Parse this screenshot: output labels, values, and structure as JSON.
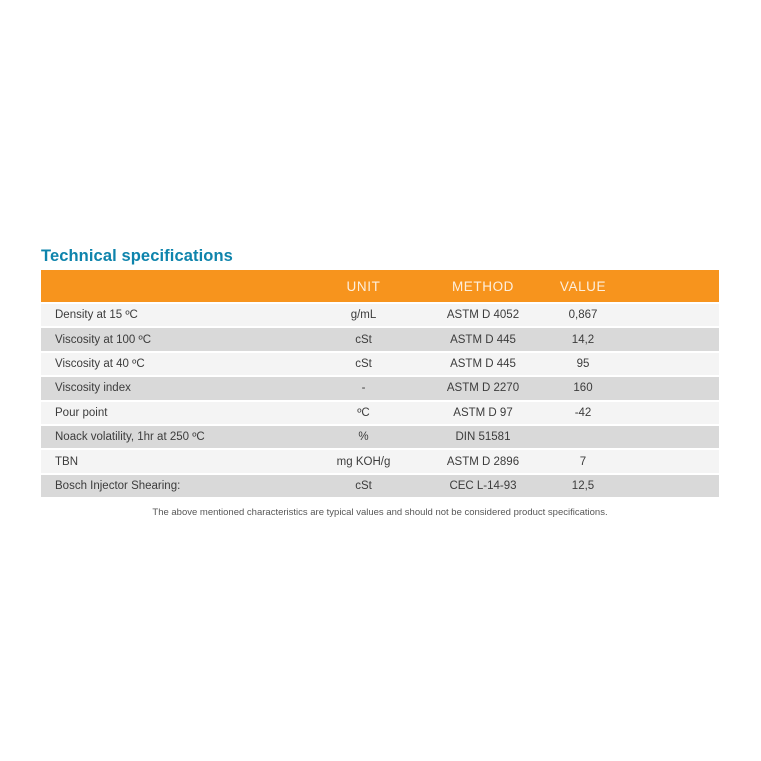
{
  "section": {
    "title": "Technical specifications",
    "footnote": "The above mentioned characteristics are typical values and should not be considered product specifications."
  },
  "table": {
    "columns": {
      "property": "",
      "unit": "UNIT",
      "method": "METHOD",
      "value": "VALUE"
    },
    "rows": [
      {
        "property": "Density at 15 ºC",
        "unit": "g/mL",
        "method": "ASTM D 4052",
        "value": "0,867"
      },
      {
        "property": "Viscosity at 100 ºC",
        "unit": "cSt",
        "method": "ASTM D 445",
        "value": "14,2"
      },
      {
        "property": "Viscosity at 40 ºC",
        "unit": "cSt",
        "method": "ASTM D 445",
        "value": "95"
      },
      {
        "property": "Viscosity index",
        "unit": "-",
        "method": "ASTM D 2270",
        "value": "160"
      },
      {
        "property": "Pour point",
        "unit": "ºC",
        "method": "ASTM D 97",
        "value": "-42"
      },
      {
        "property": "Noack volatility, 1hr at 250 ºC",
        "unit": "%",
        "method": "DIN 51581",
        "value": ""
      },
      {
        "property": "TBN",
        "unit": "mg KOH/g",
        "method": "ASTM D 2896",
        "value": "7"
      },
      {
        "property": "Bosch Injector Shearing:",
        "unit": "cSt",
        "method": "CEC L-14-93",
        "value": "12,5"
      }
    ]
  },
  "theme": {
    "header_bg": "#F7941D",
    "header_text": "#FFFFFF",
    "title_color": "#0E84AC",
    "row_light": "#F4F4F4",
    "row_dark": "#D9D9D9",
    "body_text": "#3C3C3C",
    "footnote_text": "#575757"
  }
}
